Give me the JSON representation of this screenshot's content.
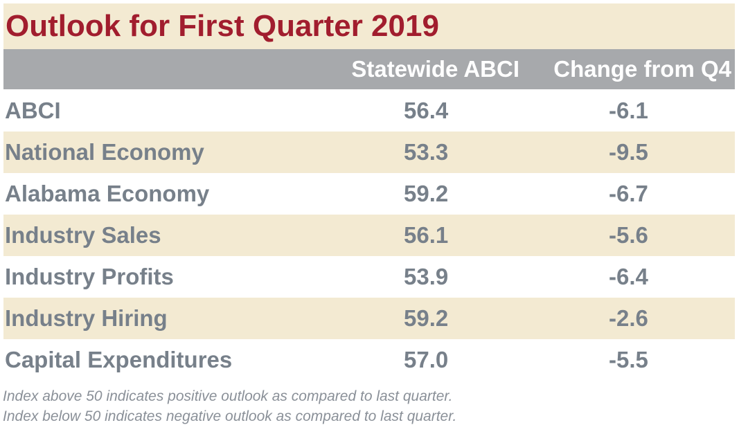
{
  "chart_data": {
    "type": "table",
    "title": "Outlook for First Quarter 2019",
    "columns": [
      "",
      "Statewide ABCI",
      "Change from Q4"
    ],
    "rows": [
      {
        "label": "ABCI",
        "abci": "56.4",
        "change": "-6.1"
      },
      {
        "label": "National Economy",
        "abci": "53.3",
        "change": "-9.5"
      },
      {
        "label": "Alabama Economy",
        "abci": "59.2",
        "change": "-6.7"
      },
      {
        "label": "Industry Sales",
        "abci": "56.1",
        "change": "-5.6"
      },
      {
        "label": "Industry Profits",
        "abci": "53.9",
        "change": "-6.4"
      },
      {
        "label": "Industry Hiring",
        "abci": "59.2",
        "change": "-2.6"
      },
      {
        "label": "Capital Expenditures",
        "abci": "57.0",
        "change": "-5.5"
      }
    ],
    "footnotes": [
      "Index above 50 indicates positive outlook as compared to last quarter.",
      "Index below 50 indicates negative outlook as compared to last quarter."
    ]
  },
  "colors": {
    "title": "#a11d2e",
    "header_bg": "#a7a9ac",
    "band": "#f3ead2",
    "text": "#77808a"
  }
}
